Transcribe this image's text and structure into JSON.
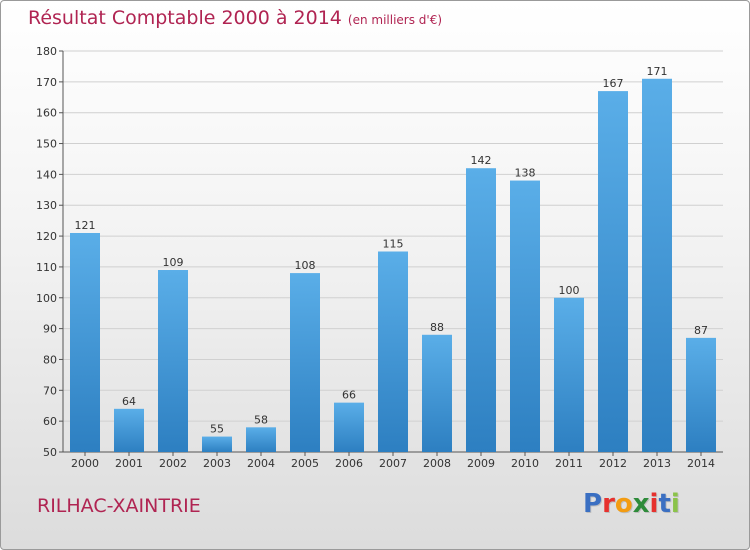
{
  "header": {
    "title": "Résultat Comptable 2000 à 2014",
    "subtitle": "(en milliers d'€)"
  },
  "footer": {
    "commune": "RILHAC-XAINTRIE",
    "logo_letters": [
      "P",
      "r",
      "o",
      "x",
      "i",
      "t",
      "i"
    ],
    "logo_colors": [
      "#3a6fc2",
      "#e6312e",
      "#f39c12",
      "#2e8b3a",
      "#e6312e",
      "#3a6fc2",
      "#8bc34a"
    ]
  },
  "colors": {
    "title": "#b02452",
    "bar_top": "#5aaee8",
    "bar_bottom": "#2d7fc1",
    "axis": "#555555",
    "grid": "#d0d0d0"
  },
  "chart_data": {
    "type": "bar",
    "title": "Résultat Comptable 2000 à 2014",
    "categories": [
      "2000",
      "2001",
      "2002",
      "2003",
      "2004",
      "2005",
      "2006",
      "2007",
      "2008",
      "2009",
      "2010",
      "2011",
      "2012",
      "2013",
      "2014"
    ],
    "values": [
      121,
      64,
      109,
      55,
      58,
      108,
      66,
      115,
      88,
      142,
      138,
      100,
      167,
      171,
      87
    ],
    "ylim": [
      50,
      180
    ],
    "yticks": [
      50,
      60,
      70,
      80,
      90,
      100,
      110,
      120,
      130,
      140,
      150,
      160,
      170,
      180
    ],
    "grid": true,
    "data_labels": true
  }
}
